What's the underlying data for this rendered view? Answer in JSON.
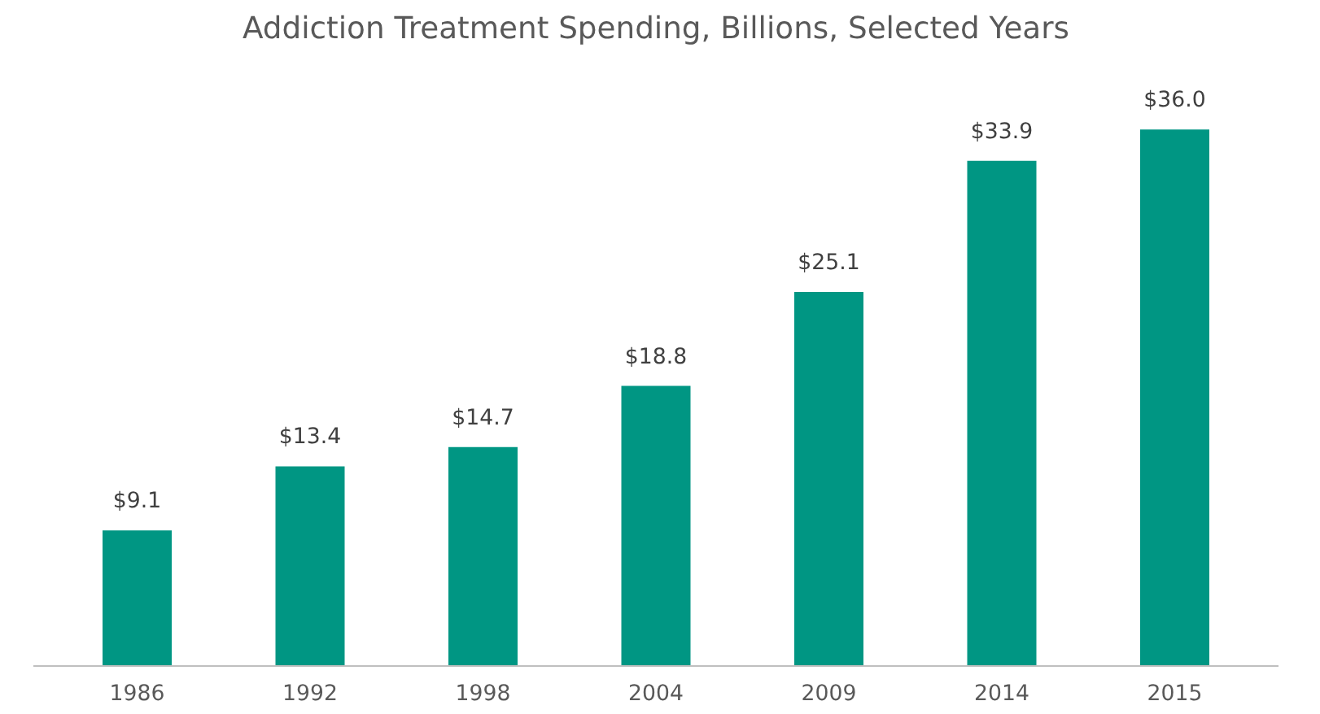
{
  "chart_data": {
    "type": "bar",
    "title": "Addiction Treatment Spending, Billions, Selected Years",
    "categories": [
      "1986",
      "1992",
      "1998",
      "2004",
      "2009",
      "2014",
      "2015"
    ],
    "values": [
      9.1,
      13.4,
      14.7,
      18.8,
      25.1,
      33.9,
      36.0
    ],
    "value_labels": [
      "$9.1",
      "$13.4",
      "$14.7",
      "$18.8",
      "$25.1",
      "$33.9",
      "$36.0"
    ],
    "color": "#009683",
    "grid": false
  }
}
